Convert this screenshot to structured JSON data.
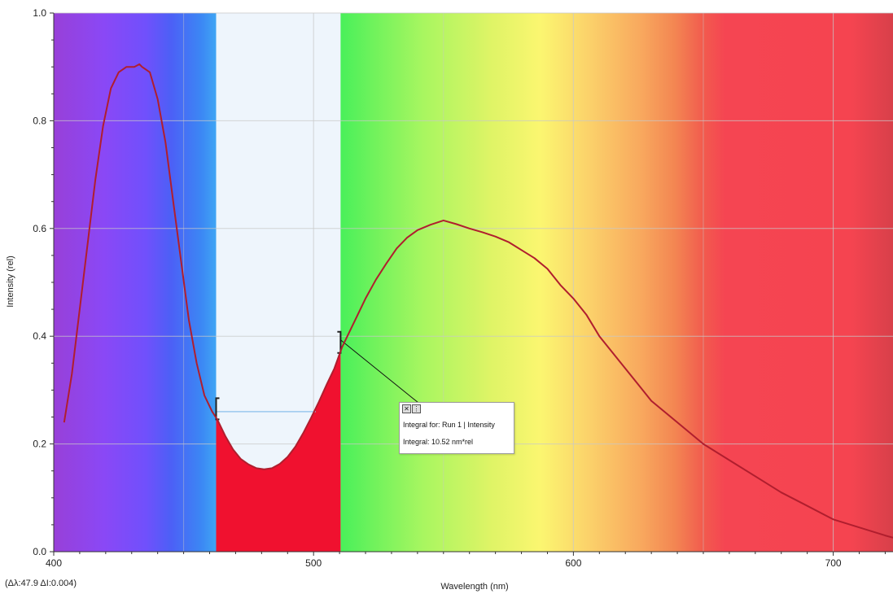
{
  "chart_data": {
    "type": "line",
    "xlabel": "Wavelength (nm)",
    "ylabel": "Intensity (rel)",
    "xlim": [
      400,
      723
    ],
    "ylim": [
      0,
      1.0
    ],
    "x_ticks": [
      "400",
      "500",
      "600",
      "700"
    ],
    "y_ticks": [
      "0.0",
      "0.2",
      "0.4",
      "0.6",
      "0.8",
      "1.0"
    ],
    "grid": true,
    "series": [
      {
        "name": "Run 1 | Intensity",
        "color": "#b01e2e",
        "x": [
          404,
          407,
          410,
          413,
          416,
          419,
          422,
          425,
          428,
          431,
          433,
          434,
          437,
          440,
          443,
          446,
          449,
          452,
          455,
          458,
          461,
          463,
          466,
          469,
          472,
          475,
          478,
          481,
          484,
          487,
          490,
          493,
          496,
          499,
          502,
          505,
          508,
          511,
          514,
          517,
          520,
          524,
          528,
          532,
          536,
          540,
          545,
          550,
          555,
          560,
          565,
          570,
          575,
          580,
          585,
          590,
          595,
          600,
          605,
          610,
          615,
          620,
          625,
          630,
          640,
          650,
          660,
          670,
          680,
          690,
          700,
          710,
          720,
          723
        ],
        "y": [
          0.24,
          0.33,
          0.45,
          0.57,
          0.69,
          0.79,
          0.86,
          0.89,
          0.9,
          0.9,
          0.905,
          0.9,
          0.89,
          0.84,
          0.76,
          0.65,
          0.54,
          0.43,
          0.35,
          0.29,
          0.26,
          0.245,
          0.215,
          0.19,
          0.172,
          0.162,
          0.155,
          0.153,
          0.155,
          0.163,
          0.176,
          0.195,
          0.22,
          0.248,
          0.278,
          0.31,
          0.34,
          0.38,
          0.41,
          0.44,
          0.47,
          0.505,
          0.535,
          0.563,
          0.583,
          0.597,
          0.607,
          0.615,
          0.608,
          0.6,
          0.593,
          0.585,
          0.575,
          0.56,
          0.545,
          0.525,
          0.495,
          0.47,
          0.44,
          0.4,
          0.37,
          0.34,
          0.31,
          0.28,
          0.24,
          0.2,
          0.17,
          0.14,
          0.11,
          0.085,
          0.06,
          0.045,
          0.03,
          0.026
        ]
      }
    ],
    "integral": {
      "from": 462.5,
      "to": 510.4,
      "baseline": 0.26,
      "title": "Integral for: Run 1 | Intensity",
      "value": "Integral: 10.52 nm*rel",
      "fill_color": "#f0112f"
    },
    "readout": "(Δλ:47.9 ΔI:0.004)"
  }
}
